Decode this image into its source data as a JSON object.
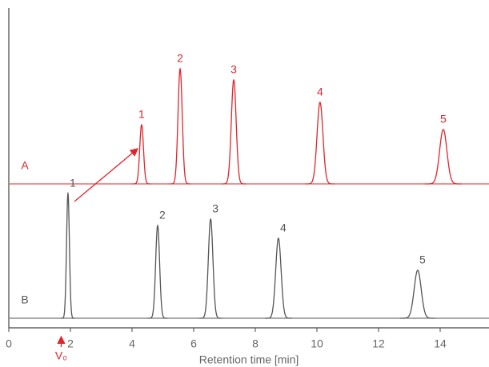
{
  "chart_data": {
    "type": "chromatogram",
    "xlabel": "Retention time [min]",
    "xlim": [
      0,
      15.6
    ],
    "xticks": [
      0,
      2,
      4,
      6,
      8,
      10,
      12,
      14
    ],
    "ylim": [
      0,
      100
    ],
    "annotation": {
      "text": "V₀",
      "x": 1.7
    },
    "series": [
      {
        "name": "A",
        "color": "#e3242b",
        "offset": 45,
        "x": [
          4.31,
          5.56,
          7.3,
          10.1,
          14.1
        ],
        "values": [
          18.5,
          36,
          32.5,
          25.5,
          17
        ],
        "peak_labels": [
          "1",
          "2",
          "3",
          "4",
          "5"
        ]
      },
      {
        "name": "B",
        "color": "#555555",
        "offset": 3,
        "x": [
          1.92,
          4.83,
          6.55,
          8.75,
          13.27
        ],
        "values": [
          39,
          29,
          31,
          25,
          15
        ],
        "peak_labels": [
          "1",
          "2",
          "3",
          "4",
          "5"
        ]
      }
    ]
  }
}
